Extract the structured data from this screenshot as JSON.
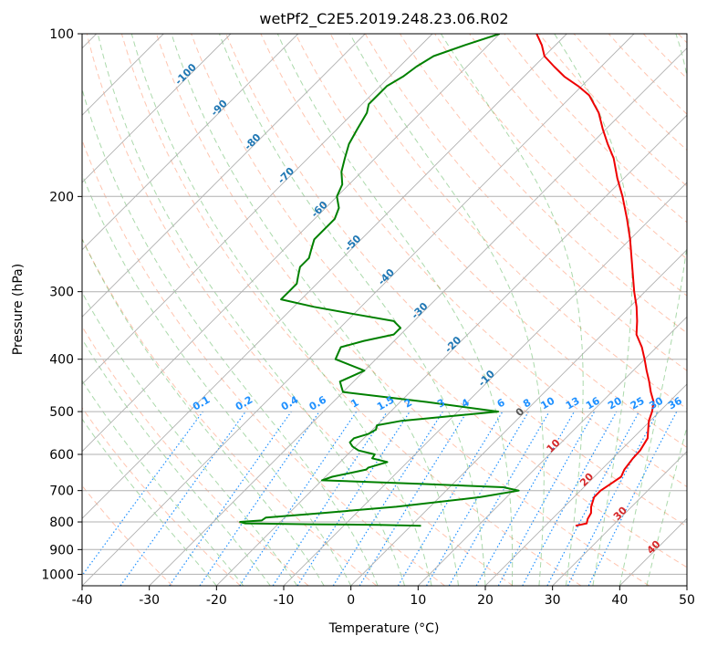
{
  "chart_data": {
    "type": "line",
    "diagram": "skew-T log-p",
    "title": "wetPf2_C2E5.2019.248.23.06.R02",
    "xlabel": "Temperature (°C)",
    "ylabel": "Pressure (hPa)",
    "xlim": [
      -40,
      50
    ],
    "ylim": [
      1050,
      100
    ],
    "y_scale": "log",
    "grid": true,
    "xticks": [
      -40,
      -30,
      -20,
      -10,
      0,
      10,
      20,
      30,
      40,
      50
    ],
    "yticks": [
      100,
      200,
      300,
      400,
      500,
      600,
      700,
      800,
      900,
      1000
    ],
    "isotherms": [
      -100,
      -90,
      -80,
      -70,
      -60,
      -50,
      -40,
      -30,
      -20,
      -10,
      0,
      10,
      20,
      30,
      40
    ],
    "mixing_ratios": [
      0.1,
      0.2,
      0.4,
      0.6,
      1,
      1.5,
      2,
      3,
      4,
      6,
      8,
      10,
      13,
      16,
      20,
      25,
      30,
      36
    ],
    "colors": {
      "temperature": "#ee0000",
      "dewpoint": "#008000",
      "isotherm_labels": "#1f77b4",
      "warm_isotherm_labels": "#d62728",
      "mixing_ratio": "#1e90ff",
      "dry_adiabat": "#ff7f50",
      "moist_adiabat": "#2ca02c",
      "grid": "#b0b0b0"
    },
    "series": [
      {
        "key": "temperature",
        "pressure": [
          813,
          805,
          790,
          770,
          750,
          720,
          700,
          680,
          660,
          640,
          610,
          590,
          560,
          540,
          520,
          500,
          480,
          460,
          440,
          420,
          400,
          380,
          360,
          340,
          320,
          300,
          280,
          260,
          240,
          220,
          200,
          185,
          170,
          160,
          150,
          140,
          130,
          125,
          120,
          115,
          110,
          105,
          100
        ],
        "values": [
          24.5,
          25.8,
          25.3,
          24.9,
          24.0,
          23.0,
          23.0,
          23.5,
          24.0,
          23.4,
          23.0,
          22.9,
          22.2,
          21.0,
          19.8,
          18.9,
          17.7,
          15.8,
          14.0,
          12.0,
          10.0,
          7.8,
          5.1,
          3.2,
          1.0,
          -1.6,
          -4.2,
          -7.0,
          -10.0,
          -13.5,
          -17.5,
          -21.0,
          -24.5,
          -27.5,
          -30.5,
          -33.5,
          -37.5,
          -40.5,
          -44.0,
          -47.0,
          -50.0,
          -52.0,
          -54.5
        ]
      },
      {
        "key": "dewpoint",
        "pressure": [
          813,
          810,
          808,
          805,
          800,
          795,
          785,
          770,
          750,
          720,
          700,
          690,
          680,
          670,
          660,
          645,
          640,
          635,
          620,
          610,
          600,
          590,
          580,
          570,
          560,
          550,
          540,
          530,
          520,
          500,
          480,
          460,
          450,
          440,
          420,
          400,
          390,
          380,
          370,
          360,
          350,
          340,
          330,
          320,
          310,
          300,
          290,
          280,
          270,
          260,
          250,
          240,
          230,
          220,
          210,
          200,
          190,
          180,
          170,
          160,
          150,
          140,
          135,
          130,
          125,
          120,
          115,
          110,
          105,
          100
        ],
        "values": [
          1.5,
          -5.0,
          -15.0,
          -25.0,
          -26.0,
          -23.0,
          -22.8,
          -15.0,
          -5.0,
          6.0,
          10.8,
          8.0,
          -5.0,
          -20.0,
          -19.0,
          -16.0,
          -15.0,
          -15.0,
          -13.0,
          -15.8,
          -16.0,
          -19.0,
          -20.5,
          -21.5,
          -21.5,
          -20.0,
          -19.5,
          -20.0,
          -17.0,
          -4.0,
          -16.0,
          -30.0,
          -31.0,
          -32.0,
          -30.0,
          -36.0,
          -36.5,
          -37.0,
          -34.5,
          -31.0,
          -31.0,
          -33.0,
          -40.0,
          -47.0,
          -53.0,
          -53.0,
          -53.0,
          -54.0,
          -55.0,
          -55.0,
          -56.0,
          -57.0,
          -57.0,
          -57.0,
          -58.0,
          -60.0,
          -61.0,
          -63.0,
          -64.5,
          -66.0,
          -67.0,
          -68.0,
          -69.0,
          -69.0,
          -69.0,
          -68.0,
          -67.5,
          -66.5,
          -63.5,
          -60.0
        ]
      }
    ]
  }
}
